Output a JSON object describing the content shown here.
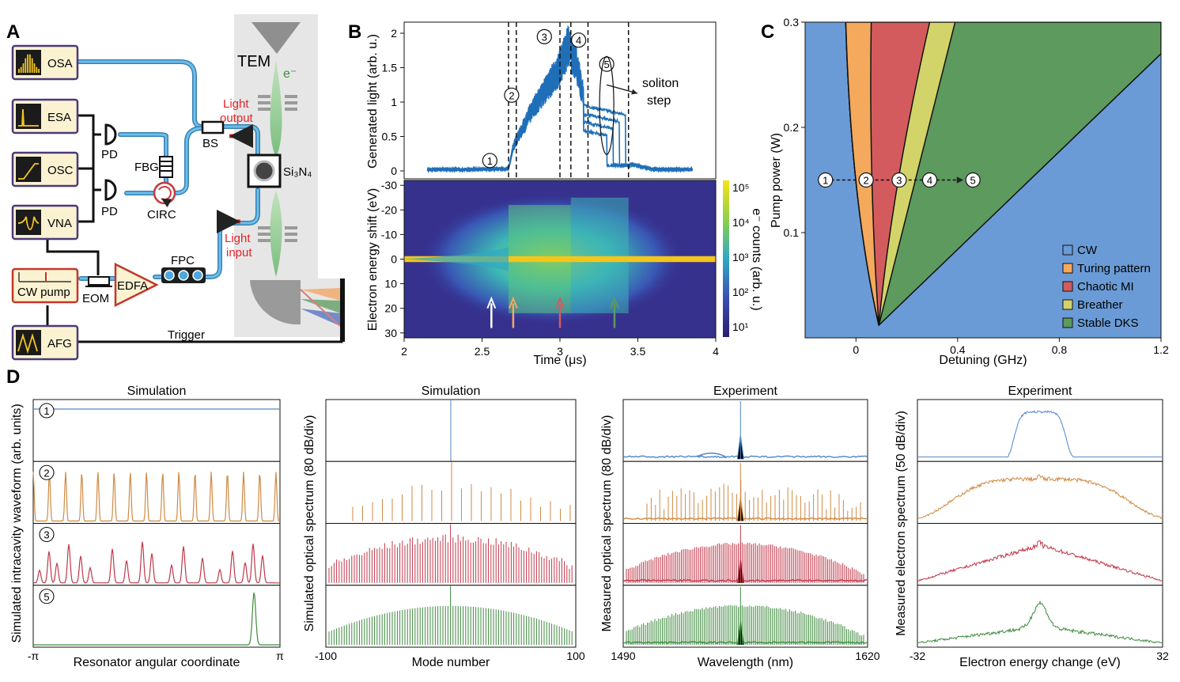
{
  "panels": {
    "A": "A",
    "B": "B",
    "C": "C",
    "D": "D"
  },
  "panel_a": {
    "instruments": [
      {
        "label": "OSA",
        "icon": "spectrum-icon"
      },
      {
        "label": "ESA",
        "icon": "rf-spectrum-icon"
      },
      {
        "label": "OSC",
        "icon": "ramp-trace-icon"
      },
      {
        "label": "VNA",
        "icon": "resonance-trace-icon"
      },
      {
        "label": "CW pump",
        "icon": "pump-laser-icon"
      },
      {
        "label": "AFG",
        "icon": "triangle-wave-icon"
      }
    ],
    "pd_1": "PD",
    "pd_2": "PD",
    "fbg": "FBG",
    "circ": "CIRC",
    "bs": "BS",
    "eom": "EOM",
    "edfa": "EDFA",
    "fpc": "FPC",
    "tem": "TEM",
    "electron": "e⁻",
    "chip": "Si₃N₄",
    "light_output": [
      "Light",
      "output"
    ],
    "light_input": [
      "Light",
      "input"
    ],
    "trigger": "Trigger",
    "colors": {
      "fiber": "#3aa0d8",
      "red_label": "#e4222a",
      "beam": "#8cc888",
      "box_fill": "#fbf2d2",
      "box_stroke": "#4b3a7a"
    }
  },
  "panel_b": {
    "ylabel_top": "Generated light (arb. u.)",
    "ylabel_bottom": "Electron energy shift (eV)",
    "xlabel": "Time (μs)",
    "colorbar_label": "e⁻ counts (arb. u.)",
    "annotation": [
      "soliton",
      "step"
    ],
    "markers": [
      "1",
      "2",
      "3",
      "4",
      "5"
    ]
  },
  "panel_c": {
    "xlabel": "Detuning (GHz)",
    "ylabel": "Pump power (W)",
    "path_markers": [
      "1",
      "2",
      "3",
      "4",
      "5"
    ],
    "legend": [
      {
        "label": "CW",
        "color": "#6a9bd6"
      },
      {
        "label": "Turing pattern",
        "color": "#f4a95c"
      },
      {
        "label": "Chaotic MI",
        "color": "#d35b5e"
      },
      {
        "label": "Breather",
        "color": "#d2d46a"
      },
      {
        "label": "Stable DKS",
        "color": "#5c9a5d"
      }
    ]
  },
  "panel_d": {
    "titles": [
      "Simulation",
      "Simulation",
      "Experiment",
      "Experiment"
    ],
    "ylabels": [
      "Simulated intracavity waveform (arb. units)",
      "Simulated optical spectrum (80 dB/div)",
      "Measured optical spectrum (80 dB/div)",
      "Measured electron spectrum (50 dB/div)"
    ],
    "xlabels": [
      "Resonator angular coordinate",
      "Mode number",
      "Wavelength (nm)",
      "Electron energy change (eV)"
    ],
    "row_markers": [
      "1",
      "2",
      "3",
      "5"
    ],
    "xticks": [
      [
        "-π",
        "π"
      ],
      [
        "-100",
        "100"
      ],
      [
        "1490",
        "1620"
      ],
      [
        "-32",
        "32"
      ]
    ],
    "row_colors": [
      "#4f86c6",
      "#d08a44",
      "#c0384a",
      "#3f8a3f"
    ]
  },
  "chart_data": [
    {
      "type": "line",
      "title": "",
      "xlabel": "Time (μs)",
      "ylabel": "Generated light (arb. u.)",
      "xlim": [
        2,
        4
      ],
      "ylim": [
        0,
        2
      ],
      "xticks": [
        "2",
        "2.5",
        "3",
        "3.5",
        "4"
      ],
      "yticks": [
        "0",
        "0.5",
        "1",
        "1.5",
        "2"
      ],
      "x": [
        2.15,
        2.4,
        2.67,
        2.7,
        2.8,
        2.9,
        3.0,
        3.05,
        3.1,
        3.15,
        3.2,
        3.3,
        3.35,
        3.4,
        3.45,
        3.6,
        3.85
      ],
      "y": [
        0.02,
        0.02,
        0.03,
        0.35,
        0.8,
        1.15,
        1.5,
        1.8,
        1.6,
        1.1,
        0.95,
        0.9,
        0.85,
        0.8,
        0.1,
        0.02,
        0.02
      ],
      "dashed_lines_x": [
        2.67,
        2.72,
        3.0,
        3.07,
        3.18,
        3.44
      ],
      "series_markers": [
        {
          "label": "1",
          "x": 2.55,
          "y": 0.15
        },
        {
          "label": "2",
          "x": 2.69,
          "y": 1.1
        },
        {
          "label": "3",
          "x": 2.9,
          "y": 1.95
        },
        {
          "label": "4",
          "x": 3.12,
          "y": 1.9
        },
        {
          "label": "5",
          "x": 3.3,
          "y": 1.55
        }
      ]
    },
    {
      "type": "heatmap",
      "xlabel": "Time (μs)",
      "ylabel": "Electron energy shift (eV)",
      "xlim": [
        2,
        4
      ],
      "ylim": [
        32,
        -32
      ],
      "xticks": [
        "2",
        "2.5",
        "3",
        "3.5",
        "4"
      ],
      "yticks": [
        "-30",
        "-20",
        "-10",
        "0",
        "10",
        "20",
        "30"
      ],
      "colorbar_ticks": [
        "10¹",
        "10²",
        "10³",
        "10⁴",
        "10⁵"
      ],
      "arrows_x": [
        2.56,
        2.7,
        3.0,
        3.35
      ],
      "arrow_colors": [
        "#ffffff",
        "#f4a95c",
        "#d35b5e",
        "#5c9a5d"
      ]
    },
    {
      "type": "area",
      "xlabel": "Detuning (GHz)",
      "ylabel": "Pump power (W)",
      "xlim": [
        -0.2,
        1.2
      ],
      "ylim": [
        0,
        0.3
      ],
      "xticks": [
        "0",
        "0.4",
        "0.8",
        "1.2"
      ],
      "yticks": [
        "0.1",
        "0.2",
        "0.3"
      ],
      "regions": [
        "CW",
        "Turing pattern",
        "Chaotic MI",
        "Breather",
        "Stable DKS"
      ],
      "path": {
        "y": 0.15,
        "x_start": -0.12,
        "x_end": 0.46
      }
    }
  ]
}
